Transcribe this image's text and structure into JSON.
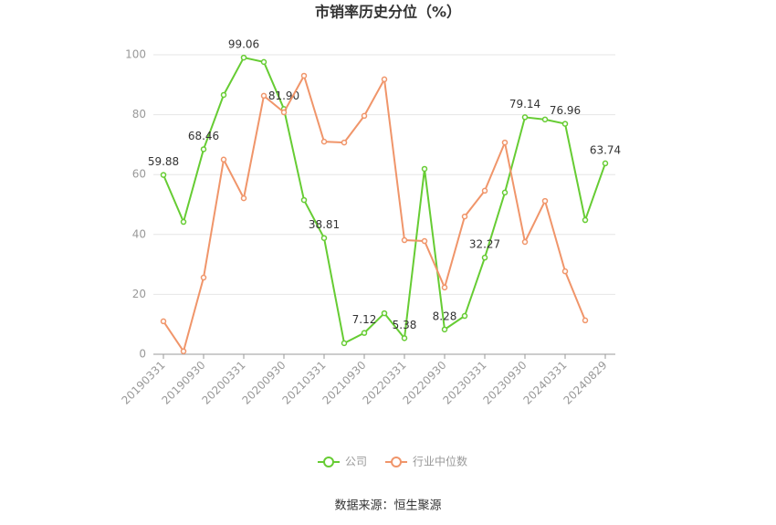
{
  "chart_data": {
    "type": "line",
    "title": "市销率历史分位（%）",
    "source": "数据来源：恒生聚源",
    "categories": [
      "20190331",
      null,
      "20190930",
      null,
      "20200331",
      null,
      "20200930",
      null,
      "20210331",
      null,
      "20210930",
      null,
      "20220331",
      null,
      "20220930",
      null,
      "20230331",
      null,
      "20230930",
      null,
      "20240331",
      null,
      "20240829"
    ],
    "series": [
      {
        "name": "公司",
        "color": "#66cc33",
        "values": [
          59.88,
          44.2,
          68.46,
          86.6,
          99.06,
          97.6,
          81.9,
          51.5,
          38.81,
          3.7,
          7.12,
          13.7,
          5.38,
          61.9,
          8.28,
          12.8,
          32.27,
          54.0,
          79.14,
          78.4,
          76.96,
          44.8,
          63.74
        ],
        "value_labels": [
          "59.88",
          null,
          "68.46",
          null,
          "99.06",
          null,
          "81.90",
          null,
          "38.81",
          null,
          "7.12",
          null,
          "5.38",
          null,
          "8.28",
          null,
          "32.27",
          null,
          "79.14",
          null,
          "76.96",
          null,
          "63.74"
        ]
      },
      {
        "name": "行业中位数",
        "color": "#f0956a",
        "values": [
          11.0,
          1.0,
          25.6,
          65.0,
          52.1,
          86.3,
          80.8,
          93.0,
          71.0,
          70.7,
          79.6,
          91.8,
          38.1,
          37.8,
          22.3,
          46.0,
          54.6,
          70.7,
          37.5,
          51.2,
          27.7,
          11.3,
          null
        ]
      }
    ],
    "ylim": [
      0,
      100
    ],
    "yticks": [
      0,
      20,
      40,
      60,
      80,
      100
    ],
    "grid": true
  }
}
